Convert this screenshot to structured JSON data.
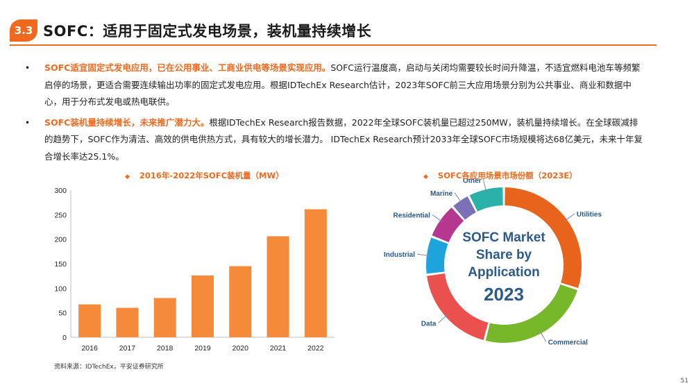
{
  "header": {
    "section_number": "3.3",
    "title": "SOFC：适用于固定式发电场景，装机量持续增长"
  },
  "bullets": [
    {
      "highlight": "SOFC适宜固定式发电应用，已在公用事业、工商业供电等场景实现应用。",
      "text": "SOFC运行温度高，启动与关闭均需要较长时间升降温，不适宜燃料电池车等频繁启停的场景，更适合需要连续输出功率的固定式发电应用。根据IDTechEx Research估计，2023年SOFC前三大应用场景分别为公共事业、商业和数据中心，用于分布式发电或热电联供。"
    },
    {
      "highlight": "SOFC装机量持续增长，未来推广潜力大。",
      "text": "根据IDTechEx Research报告数据，2022年全球SOFC装机量已超过250MW，装机量持续增长。在全球碳减排的趋势下，SOFC作为清洁、高效的供电供热方式，具有较大的增长潜力。 IDTechEx Research预计2033年全球SOFC市场规模将达68亿美元，未来十年复合增长率达25.1%。"
    }
  ],
  "chart_titles": {
    "bar": "2016年-2022年SOFC装机量（MW）",
    "donut": "SOFC各应用场景市场份额（2023E）",
    "bullet_symbol": "◆"
  },
  "chart_data": [
    {
      "type": "bar",
      "title": "2016年-2022年SOFC装机量（MW）",
      "categories": [
        "2016",
        "2017",
        "2018",
        "2019",
        "2020",
        "2021",
        "2022"
      ],
      "values": [
        67,
        60,
        80,
        126,
        145,
        206,
        261
      ],
      "ylim": [
        0,
        300
      ],
      "yticks": [
        0,
        50,
        100,
        150,
        200,
        250,
        300
      ],
      "xlabel": "",
      "ylabel": "",
      "bar_color": "#f58b3a",
      "grid": false
    },
    {
      "type": "pie",
      "title": "SOFC各应用场景市场份额（2023E）",
      "center_text": [
        "SOFC Market",
        "Share by",
        "Application",
        "2023"
      ],
      "slices": [
        {
          "label": "Utilities",
          "value": 30,
          "color": "#e8641c"
        },
        {
          "label": "Commercial",
          "value": 24,
          "color": "#76b82a"
        },
        {
          "label": "Data",
          "value": 19,
          "color": "#e9504e"
        },
        {
          "label": "Industrial",
          "value": 8,
          "color": "#1fa3dc"
        },
        {
          "label": "Residential",
          "value": 7.5,
          "color": "#b5378f"
        },
        {
          "label": "Marine",
          "value": 4,
          "color": "#7b6fb5"
        },
        {
          "label": "Other",
          "value": 7.5,
          "color": "#2ab1aa"
        }
      ],
      "label_color": "#2c5a8a",
      "center_text_color": "#2c5a8a"
    }
  ],
  "footer": {
    "source": "资料来源：IDTechEx，平安证券研究所",
    "page_number": "51"
  }
}
